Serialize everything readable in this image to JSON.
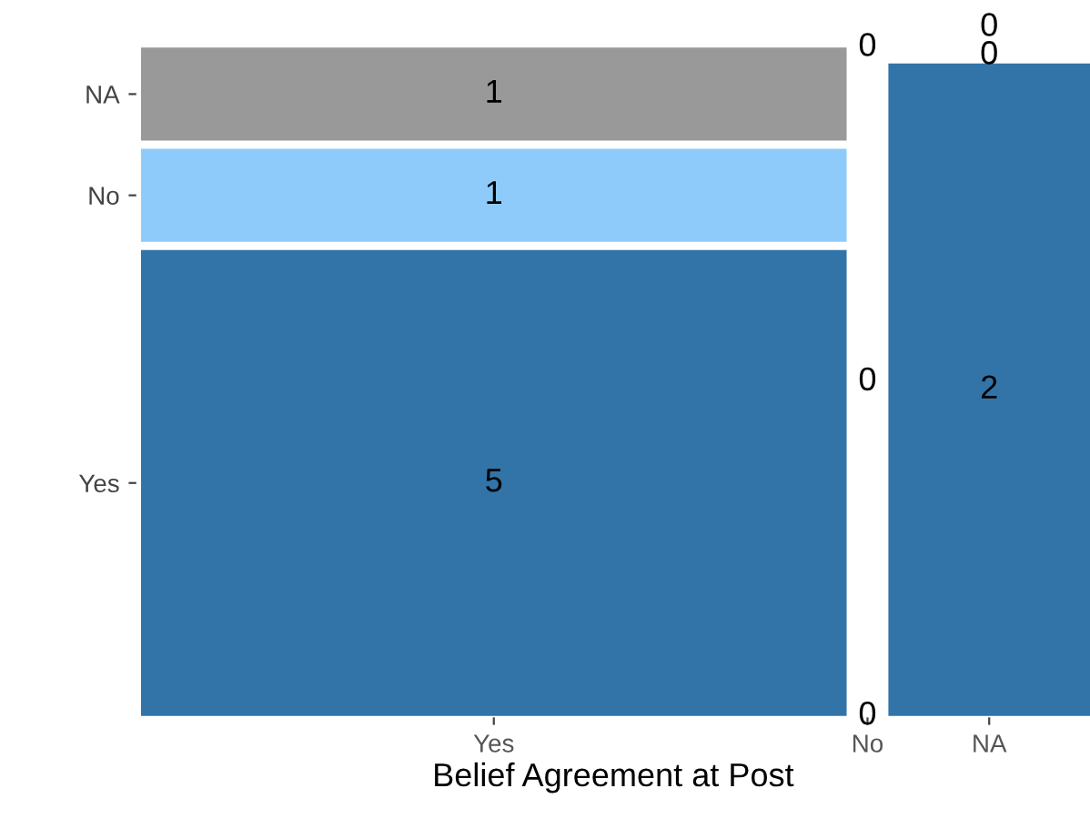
{
  "chart_data": {
    "type": "other",
    "xlabel": "Belief Agreement at Post",
    "categories": [
      "Yes",
      "No",
      "NA"
    ],
    "series": [
      {
        "name": "Yes",
        "color": "#3274a8",
        "values": [
          5,
          0,
          2
        ]
      },
      {
        "name": "No",
        "color": "#8ecbfa",
        "values": [
          1,
          0,
          0
        ]
      },
      {
        "name": "NA",
        "color": "#999999",
        "values": [
          1,
          0,
          0
        ]
      }
    ],
    "data_labels": true
  }
}
